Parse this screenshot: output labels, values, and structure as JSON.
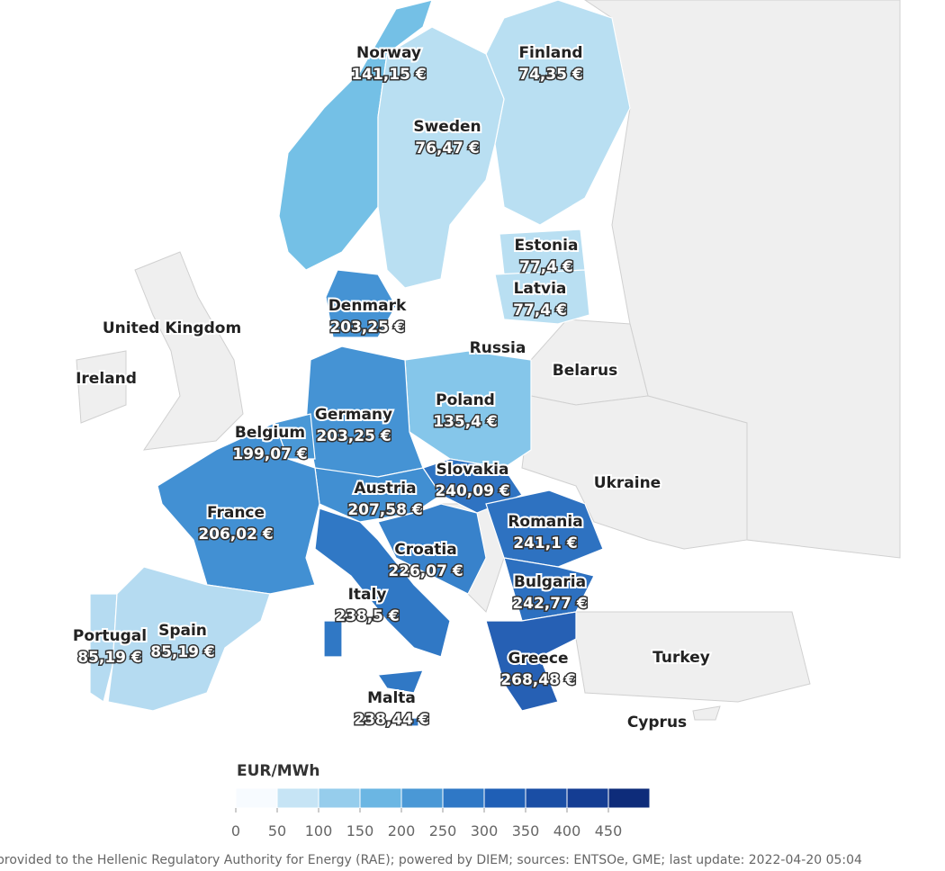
{
  "countries": [
    {
      "name": "Norway",
      "price": "141,15 €",
      "color": "#74c0e6"
    },
    {
      "name": "Finland",
      "price": "74,35 €",
      "color": "#b9dff2"
    },
    {
      "name": "Sweden",
      "price": "76,47 €",
      "color": "#b9dff2"
    },
    {
      "name": "Estonia",
      "price": "77,4 €",
      "color": "#b9dff2"
    },
    {
      "name": "Latvia",
      "price": "77,4 €",
      "color": "#b9dff2"
    },
    {
      "name": "Denmark",
      "price": "203,25 €",
      "color": "#4593d4"
    },
    {
      "name": "Poland",
      "price": "135,4 €",
      "color": "#85c6ea"
    },
    {
      "name": "Germany",
      "price": "203,25 €",
      "color": "#4593d4"
    },
    {
      "name": "Belgium",
      "price": "199,07 €",
      "color": "#4a98d6"
    },
    {
      "name": "Slovakia",
      "price": "240,09 €",
      "color": "#2f73c2"
    },
    {
      "name": "Austria",
      "price": "207,58 €",
      "color": "#418fd2"
    },
    {
      "name": "France",
      "price": "206,02 €",
      "color": "#4290d3"
    },
    {
      "name": "Romania",
      "price": "241,1 €",
      "color": "#2e72c1"
    },
    {
      "name": "Croatia",
      "price": "226,07 €",
      "color": "#3882cb"
    },
    {
      "name": "Bulgaria",
      "price": "242,77 €",
      "color": "#2d70c0"
    },
    {
      "name": "Italy",
      "price": "238,5 €",
      "color": "#3078c5"
    },
    {
      "name": "Portugal",
      "price": "85,19 €",
      "color": "#b5dbf1"
    },
    {
      "name": "Spain",
      "price": "85,19 €",
      "color": "#b5dbf1"
    },
    {
      "name": "Greece",
      "price": "268,48 €",
      "color": "#2660b4"
    },
    {
      "name": "Malta",
      "price": "238,44 €",
      "color": "#3078c5"
    }
  ],
  "other_countries": [
    "United Kingdom",
    "Ireland",
    "Russia",
    "Belarus",
    "Ukraine",
    "Turkey",
    "Cyprus"
  ],
  "legend": {
    "title": "EUR/MWh",
    "range": [
      0,
      500
    ],
    "ticks": [
      0,
      50,
      100,
      150,
      200,
      250,
      300,
      350,
      400,
      450
    ],
    "colors": [
      "#f7fbff",
      "#c6e4f5",
      "#96cdec",
      "#6bb6e3",
      "#4a98d6",
      "#2f78c6",
      "#1f5fb6",
      "#1a4ea5",
      "#143d93",
      "#0e2c7a"
    ]
  },
  "footer": "provided to the Hellenic Regulatory Authority for Energy (RAE); powered by DIEM; sources: ENTSOe, GME; last update: 2022-04-20 05:04"
}
